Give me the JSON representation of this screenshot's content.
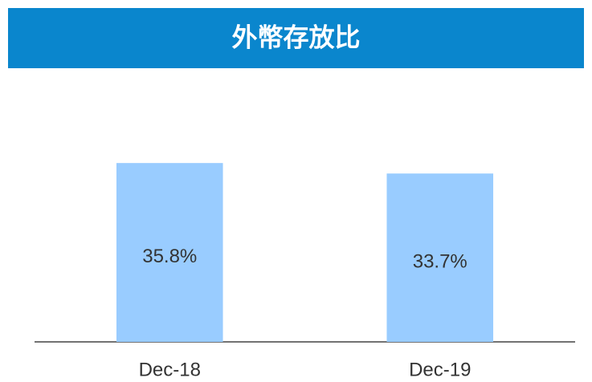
{
  "chart_data": {
    "type": "bar",
    "title": "外幣存放比",
    "categories": [
      "Dec-18",
      "Dec-19"
    ],
    "values": [
      35.8,
      33.7
    ],
    "value_labels": [
      "35.8%",
      "33.7%"
    ],
    "color": "#99ccff",
    "ylim": [
      0,
      40
    ]
  }
}
